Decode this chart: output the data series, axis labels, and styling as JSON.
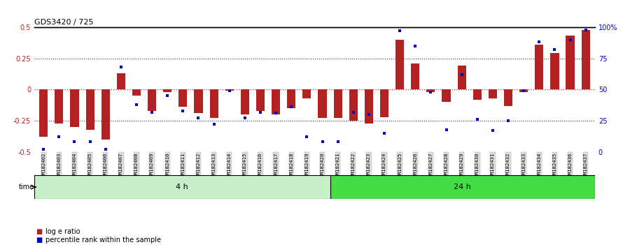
{
  "title": "GDS3420 / 725",
  "samples": [
    "GSM182402",
    "GSM182403",
    "GSM182404",
    "GSM182405",
    "GSM182406",
    "GSM182407",
    "GSM182408",
    "GSM182409",
    "GSM182410",
    "GSM182411",
    "GSM182412",
    "GSM182413",
    "GSM182414",
    "GSM182415",
    "GSM182416",
    "GSM182417",
    "GSM182418",
    "GSM182419",
    "GSM182420",
    "GSM182421",
    "GSM182422",
    "GSM182423",
    "GSM182424",
    "GSM182425",
    "GSM182426",
    "GSM182427",
    "GSM182428",
    "GSM182429",
    "GSM182430",
    "GSM182431",
    "GSM182432",
    "GSM182433",
    "GSM182434",
    "GSM182435",
    "GSM182436",
    "GSM182437"
  ],
  "log_ratio": [
    -0.38,
    -0.27,
    -0.3,
    -0.32,
    -0.4,
    0.13,
    -0.05,
    -0.17,
    -0.02,
    -0.14,
    -0.19,
    -0.23,
    -0.01,
    -0.2,
    -0.17,
    -0.2,
    -0.15,
    -0.07,
    -0.23,
    -0.23,
    -0.25,
    -0.27,
    -0.22,
    0.4,
    0.21,
    -0.02,
    -0.1,
    0.19,
    -0.08,
    -0.07,
    -0.13,
    -0.02,
    0.36,
    0.29,
    0.43,
    0.48
  ],
  "percentile": [
    2,
    12,
    8,
    8,
    2,
    68,
    38,
    32,
    45,
    33,
    27,
    22,
    49,
    27,
    32,
    31,
    36,
    12,
    8,
    8,
    32,
    30,
    15,
    97,
    85,
    48,
    18,
    62,
    26,
    17,
    25,
    49,
    88,
    82,
    90,
    98
  ],
  "group1_label": "4 h",
  "group2_label": "24 h",
  "group1_count": 19,
  "group2_count": 17,
  "ylim": [
    -0.5,
    0.5
  ],
  "right_ylim": [
    0,
    100
  ],
  "bar_color": "#b22222",
  "dot_color": "#0000cc",
  "bg_color": "#ffffff",
  "hline_color": "#cc2200",
  "group1_bg": "#c8f0c8",
  "group2_bg": "#44dd44",
  "dotted_levels": [
    0.25,
    0.0,
    -0.25
  ],
  "left_yticks": [
    -0.5,
    -0.25,
    0,
    0.25,
    0.5
  ],
  "left_yticklabels": [
    "-0.5",
    "-0.25",
    "0",
    "0.25",
    "0.5"
  ],
  "right_yticks": [
    0,
    25,
    50,
    75,
    100
  ],
  "right_yticklabels": [
    "0",
    "25",
    "50",
    "75",
    "100%"
  ],
  "legend_items": [
    {
      "label": "log e ratio",
      "color": "#b22222",
      "marker": "s"
    },
    {
      "label": "percentile rank within the sample",
      "color": "#0000cc",
      "marker": "s"
    }
  ],
  "time_label": "time",
  "bar_width": 0.55
}
